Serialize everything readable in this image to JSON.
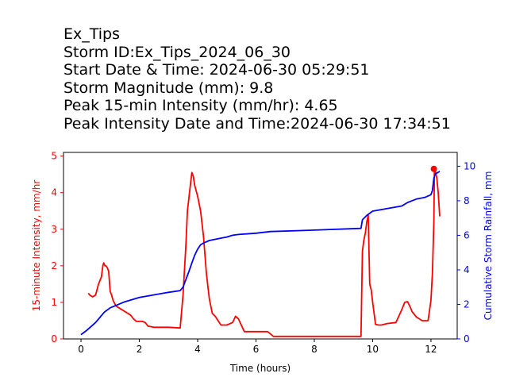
{
  "title_lines": [
    "Ex_Tips",
    "Storm ID:Ex_Tips_2024_06_30",
    "Start Date & Time: 2024-06-30 05:29:51",
    "Storm Magnitude (mm): 9.8",
    "Peak 15-min Intensity (mm/hr): 4.65",
    "Peak Intensity Date and Time:2024-06-30 17:34:51"
  ],
  "chart_data": {
    "type": "line",
    "xlabel": "Time (hours)",
    "ylabel_left": "15-minute Intensity, mm/hr",
    "ylabel_right": "Cumulative Storm Rainfall, mm",
    "xlim": [
      -0.6,
      12.9
    ],
    "ylim_left": [
      0,
      5.1
    ],
    "ylim_right": [
      0,
      10.8
    ],
    "xticks": [
      0,
      2,
      4,
      6,
      8,
      10,
      12
    ],
    "yticks_left": [
      0,
      1,
      2,
      3,
      4,
      5
    ],
    "yticks_right": [
      0,
      2,
      4,
      6,
      8,
      10
    ],
    "colors": {
      "left_axis": "#ff0000",
      "right_axis": "#0000ff",
      "intensity": "#ff0000",
      "cumulative": "#0000ff"
    },
    "grid": false,
    "series": [
      {
        "axis": "left",
        "x": [
          0.25,
          0.3,
          0.4,
          0.5,
          0.55,
          0.6,
          0.7,
          0.75,
          0.78,
          0.82,
          0.85,
          0.9,
          0.95,
          1.0,
          1.05,
          1.1,
          1.2,
          1.3,
          1.5,
          1.7,
          1.8,
          1.9,
          2.0,
          2.1,
          2.2,
          2.3,
          2.5,
          3.0,
          3.4,
          3.5,
          3.6,
          3.65,
          3.7,
          3.75,
          3.8,
          3.85,
          3.9,
          4.0,
          4.1,
          4.2,
          4.3,
          4.4,
          4.5,
          4.6,
          4.7,
          4.8,
          5.0,
          5.2,
          5.3,
          5.4,
          5.6,
          6.0,
          6.4,
          6.6,
          9.6,
          9.65,
          9.7,
          9.75,
          9.8,
          9.85,
          9.9,
          9.95,
          10.0,
          10.1,
          10.2,
          10.3,
          10.5,
          10.8,
          11.0,
          11.1,
          11.2,
          11.3,
          11.35,
          11.5,
          11.7,
          11.9,
          12.0,
          12.05,
          12.1,
          12.12,
          12.15,
          12.2,
          12.25,
          12.3
        ],
        "y": [
          1.25,
          1.2,
          1.15,
          1.2,
          1.35,
          1.5,
          1.7,
          2.0,
          2.08,
          2.0,
          2.0,
          1.95,
          1.85,
          1.3,
          1.2,
          1.05,
          0.9,
          0.85,
          0.75,
          0.65,
          0.55,
          0.48,
          0.48,
          0.48,
          0.45,
          0.35,
          0.32,
          0.32,
          0.3,
          1.2,
          2.6,
          3.5,
          3.85,
          4.2,
          4.55,
          4.45,
          4.2,
          3.9,
          3.5,
          2.8,
          1.8,
          1.1,
          0.7,
          0.62,
          0.5,
          0.38,
          0.38,
          0.45,
          0.62,
          0.55,
          0.2,
          0.2,
          0.2,
          0.07,
          0.07,
          2.4,
          2.7,
          2.9,
          3.2,
          3.38,
          1.5,
          1.35,
          1.0,
          0.4,
          0.38,
          0.38,
          0.42,
          0.45,
          0.8,
          1.0,
          1.02,
          0.85,
          0.75,
          0.6,
          0.5,
          0.5,
          1.05,
          1.8,
          3.2,
          4.65,
          4.6,
          4.4,
          4.0,
          3.35
        ]
      },
      {
        "axis": "right",
        "x": [
          0.0,
          0.2,
          0.5,
          0.7,
          0.8,
          1.0,
          1.5,
          2.0,
          2.5,
          3.0,
          3.4,
          3.5,
          3.6,
          3.7,
          3.8,
          3.9,
          4.0,
          4.1,
          4.2,
          4.4,
          4.7,
          5.0,
          5.2,
          5.4,
          6.0,
          6.5,
          8.0,
          9.6,
          9.65,
          9.8,
          10.0,
          10.5,
          11.0,
          11.2,
          11.5,
          11.8,
          12.0,
          12.05,
          12.1,
          12.15,
          12.3
        ],
        "y": [
          0.25,
          0.5,
          0.95,
          1.35,
          1.55,
          1.8,
          2.15,
          2.4,
          2.55,
          2.7,
          2.8,
          3.0,
          3.45,
          3.9,
          4.4,
          4.85,
          5.2,
          5.45,
          5.55,
          5.7,
          5.8,
          5.9,
          6.0,
          6.05,
          6.12,
          6.22,
          6.3,
          6.4,
          6.9,
          7.15,
          7.4,
          7.55,
          7.7,
          7.9,
          8.1,
          8.2,
          8.35,
          8.6,
          9.3,
          9.55,
          9.7
        ]
      }
    ],
    "peak_marker": {
      "x": 12.1,
      "y": 4.65,
      "color": "#ff0000"
    }
  }
}
